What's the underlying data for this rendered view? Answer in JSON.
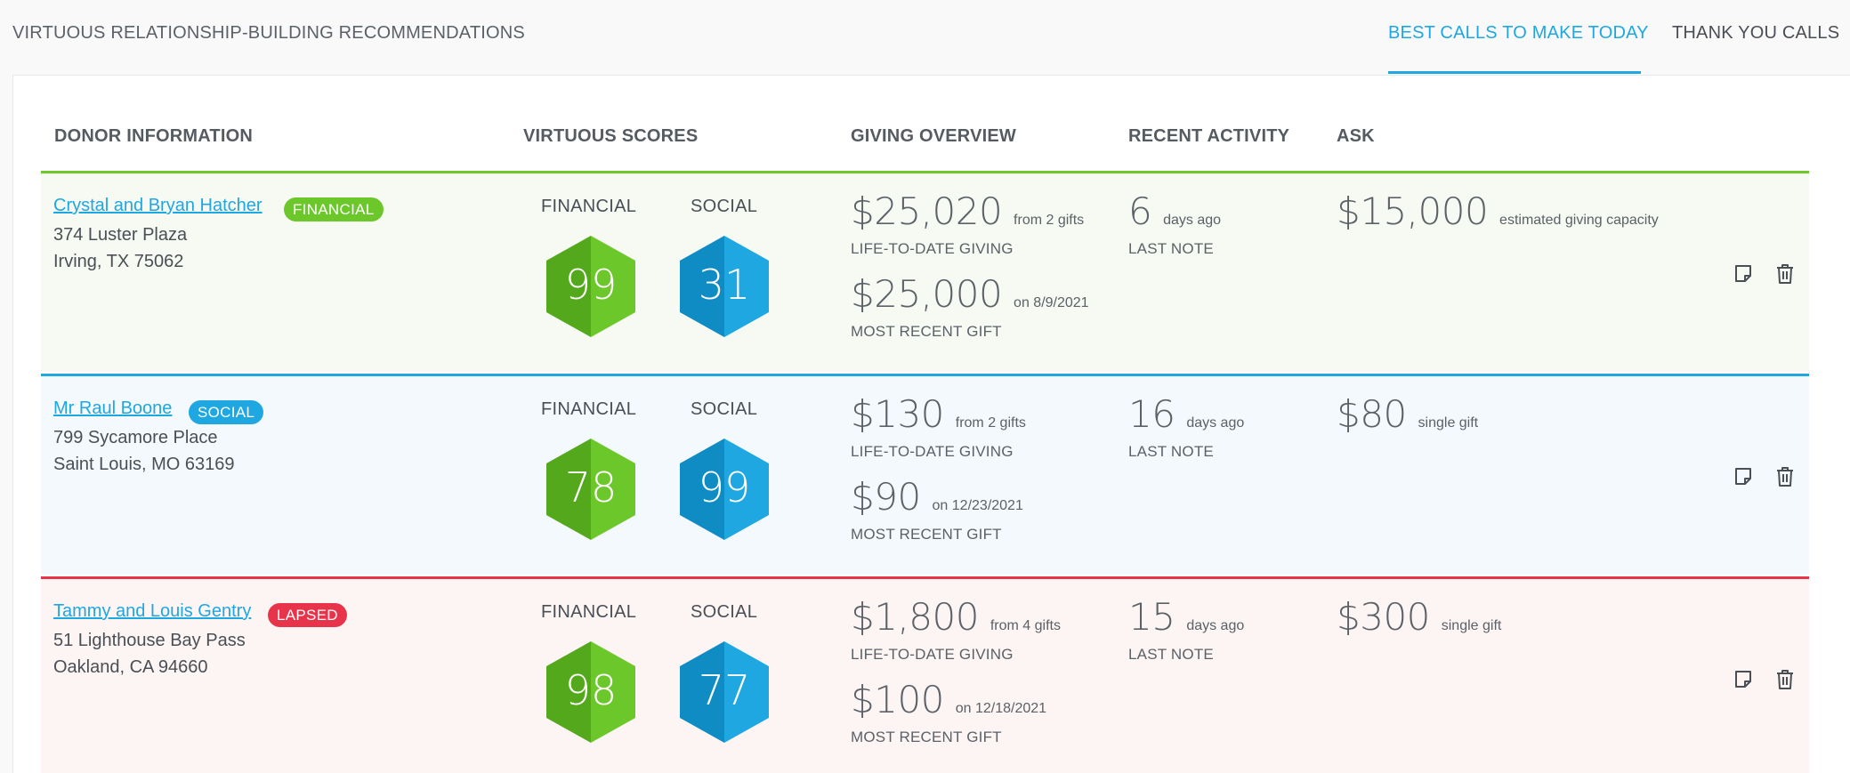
{
  "header": {
    "title": "VIRTUOUS RELATIONSHIP-BUILDING RECOMMENDATIONS",
    "tabs": [
      {
        "label": "BEST CALLS TO MAKE TODAY",
        "active": true
      },
      {
        "label": "THANK YOU CALLS",
        "active": false
      }
    ]
  },
  "columns": {
    "donor": "DONOR INFORMATION",
    "scores": "VIRTUOUS SCORES",
    "giving": "GIVING OVERVIEW",
    "activity": "RECENT ACTIVITY",
    "ask": "ASK"
  },
  "colors": {
    "accent": "#1ea7e1",
    "financial": "#6cc72a",
    "social": "#1ea7e1",
    "lapsed": "#e8344a"
  },
  "rows": [
    {
      "name": "Crystal and Bryan Hatcher",
      "badge": "FINANCIAL",
      "address1": "374 Luster Plaza",
      "address2": "Irving, TX 75062",
      "financial_label": "FINANCIAL",
      "social_label": "SOCIAL",
      "financial_score": "99",
      "social_score": "31",
      "ltd_amount": "$25,020",
      "ltd_note": "from 2 gifts",
      "ltd_caption": "LIFE-TO-DATE GIVING",
      "recent_amount": "$25,000",
      "recent_note": "on 8/9/2021",
      "recent_caption": "MOST RECENT GIFT",
      "activity_value": "6",
      "activity_note": "days ago",
      "activity_caption": "LAST NOTE",
      "ask_amount": "$15,000",
      "ask_note": "estimated giving capacity",
      "note_icon": "note-icon",
      "delete_icon": "trash-icon"
    },
    {
      "name": "Mr Raul Boone",
      "badge": "SOCIAL",
      "address1": "799 Sycamore Place",
      "address2": "Saint Louis, MO 63169",
      "financial_label": "FINANCIAL",
      "social_label": "SOCIAL",
      "financial_score": "78",
      "social_score": "99",
      "ltd_amount": "$130",
      "ltd_note": "from 2 gifts",
      "ltd_caption": "LIFE-TO-DATE GIVING",
      "recent_amount": "$90",
      "recent_note": "on 12/23/2021",
      "recent_caption": "MOST RECENT GIFT",
      "activity_value": "16",
      "activity_note": "days ago",
      "activity_caption": "LAST NOTE",
      "ask_amount": "$80",
      "ask_note": "single gift",
      "note_icon": "note-icon",
      "delete_icon": "trash-icon"
    },
    {
      "name": "Tammy and Louis Gentry",
      "badge": "LAPSED",
      "address1": "51 Lighthouse Bay Pass",
      "address2": "Oakland, CA 94660",
      "financial_label": "FINANCIAL",
      "social_label": "SOCIAL",
      "financial_score": "98",
      "social_score": "77",
      "ltd_amount": "$1,800",
      "ltd_note": "from 4 gifts",
      "ltd_caption": "LIFE-TO-DATE GIVING",
      "recent_amount": "$100",
      "recent_note": "on 12/18/2021",
      "recent_caption": "MOST RECENT GIFT",
      "activity_value": "15",
      "activity_note": "days ago",
      "activity_caption": "LAST NOTE",
      "ask_amount": "$300",
      "ask_note": "single gift",
      "note_icon": "note-icon",
      "delete_icon": "trash-icon"
    }
  ]
}
